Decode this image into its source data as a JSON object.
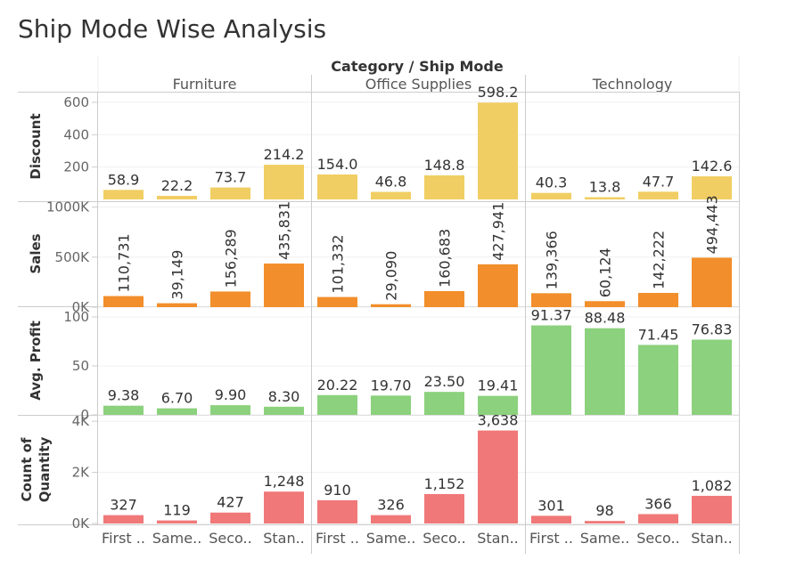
{
  "title": "Ship Mode Wise Analysis",
  "chart_data": {
    "type": "bar",
    "column_header": "Category / Ship Mode",
    "categories": [
      "Furniture",
      "Office Supplies",
      "Technology"
    ],
    "ship_modes": [
      "First ..",
      "Same..",
      "Seco..",
      "Stan.."
    ],
    "ship_mode_labels": [
      [
        "First ..",
        "Same..",
        "Seco..",
        "Stan.."
      ],
      [
        "First ..",
        "Same..",
        "Seco..",
        "Stan.."
      ],
      [
        "First ..",
        "Same..",
        "Seco..",
        "Stan.."
      ]
    ],
    "rows": [
      {
        "name": "Discount",
        "axis_title": [
          "Discount"
        ],
        "color": "#f1ce63",
        "ylim": [
          0,
          660
        ],
        "ticks": [
          {
            "value": 200,
            "label": "200"
          },
          {
            "value": 400,
            "label": "400"
          },
          {
            "value": 600,
            "label": "600"
          }
        ],
        "label_orientation": "horizontal",
        "values": [
          [
            58.9,
            22.2,
            73.7,
            214.2
          ],
          [
            154.0,
            46.8,
            148.8,
            598.2
          ],
          [
            40.3,
            13.8,
            47.7,
            142.6
          ]
        ],
        "labels": [
          [
            "58.9",
            "22.2",
            "73.7",
            "214.2"
          ],
          [
            "154.0",
            "46.8",
            "148.8",
            "598.2"
          ],
          [
            "40.3",
            "13.8",
            "47.7",
            "142.6"
          ]
        ]
      },
      {
        "name": "Sales",
        "axis_title": [
          "Sales"
        ],
        "color": "#f28e2b",
        "ylim": [
          0,
          1050000
        ],
        "ticks": [
          {
            "value": 0,
            "label": "0K"
          },
          {
            "value": 500000,
            "label": "500K"
          },
          {
            "value": 1000000,
            "label": "1000K"
          }
        ],
        "label_orientation": "vertical",
        "values": [
          [
            110731,
            39149,
            156289,
            435831
          ],
          [
            101332,
            29090,
            160683,
            427941
          ],
          [
            139366,
            60124,
            142222,
            494443
          ]
        ],
        "labels": [
          [
            "110,731",
            "39,149",
            "156,289",
            "435,831"
          ],
          [
            "101,332",
            "29,090",
            "160,683",
            "427,941"
          ],
          [
            "139,366",
            "60,124",
            "142,222",
            "494,443"
          ]
        ]
      },
      {
        "name": "Avg. Profit",
        "axis_title": [
          "Avg. Profit"
        ],
        "color": "#8cd17d",
        "ylim": [
          0,
          110
        ],
        "ticks": [
          {
            "value": 0,
            "label": "0"
          },
          {
            "value": 50,
            "label": "50"
          },
          {
            "value": 100,
            "label": "100"
          }
        ],
        "label_orientation": "horizontal",
        "values": [
          [
            9.38,
            6.7,
            9.9,
            8.3
          ],
          [
            20.22,
            19.7,
            23.5,
            19.41
          ],
          [
            91.37,
            88.48,
            71.45,
            76.83
          ]
        ],
        "labels": [
          [
            "9.38",
            "6.70",
            "9.90",
            "8.30"
          ],
          [
            "20.22",
            "19.70",
            "23.50",
            "19.41"
          ],
          [
            "91.37",
            "88.48",
            "71.45",
            "76.83"
          ]
        ]
      },
      {
        "name": "Count of Quantity",
        "axis_title": [
          "Count of",
          "Quantity"
        ],
        "color": "#f07878",
        "ylim": [
          0,
          4250
        ],
        "ticks": [
          {
            "value": 0,
            "label": "0K"
          },
          {
            "value": 2000,
            "label": "2K"
          },
          {
            "value": 4000,
            "label": "4K"
          }
        ],
        "label_orientation": "horizontal",
        "values": [
          [
            327,
            119,
            427,
            1248
          ],
          [
            910,
            326,
            1152,
            3638
          ],
          [
            301,
            98,
            366,
            1082
          ]
        ],
        "labels": [
          [
            "327",
            "119",
            "427",
            "1,248"
          ],
          [
            "910",
            "326",
            "1,152",
            "3,638"
          ],
          [
            "301",
            "98",
            "366",
            "1,082"
          ]
        ]
      }
    ],
    "grid": true,
    "legend": "none"
  }
}
